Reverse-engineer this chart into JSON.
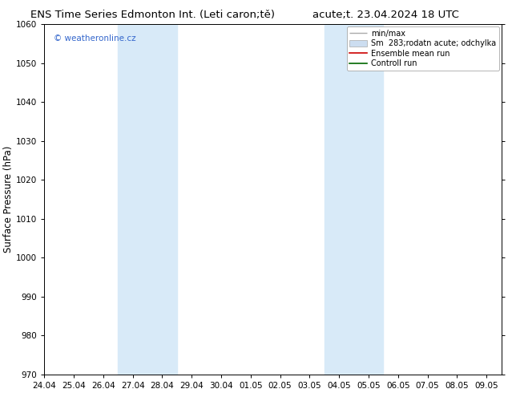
{
  "title_left": "ENS Time Series Edmonton Int. (Leti caron;tě)",
  "title_right": "acute;t. 23.04.2024 18 UTC",
  "ylabel": "Surface Pressure (hPa)",
  "ylim": [
    970,
    1060
  ],
  "yticks": [
    970,
    980,
    990,
    1000,
    1010,
    1020,
    1030,
    1040,
    1050,
    1060
  ],
  "x_tick_labels": [
    "24.04",
    "25.04",
    "26.04",
    "27.04",
    "28.04",
    "29.04",
    "30.04",
    "01.05",
    "02.05",
    "03.05",
    "04.05",
    "05.05",
    "06.05",
    "07.05",
    "08.05",
    "09.05"
  ],
  "shade_bands": [
    {
      "xmin": 3,
      "xmax": 5
    },
    {
      "xmin": 10,
      "xmax": 12
    }
  ],
  "shade_color": "#d8eaf8",
  "background_color": "#ffffff",
  "watermark_text": "© weatheronline.cz",
  "watermark_color": "#3366cc",
  "legend_label1": "min/max",
  "legend_label2": "Sm  283;rodatn acute; odchylka",
  "legend_label3": "Ensemble mean run",
  "legend_label4": "Controll run",
  "legend_color1": "#aaaaaa",
  "legend_color2": "#ccddf0",
  "legend_color3": "#cc0000",
  "legend_color4": "#006600",
  "title_fontsize": 9.5,
  "ylabel_fontsize": 8.5,
  "tick_fontsize": 7.5,
  "legend_fontsize": 7,
  "watermark_fontsize": 7.5
}
